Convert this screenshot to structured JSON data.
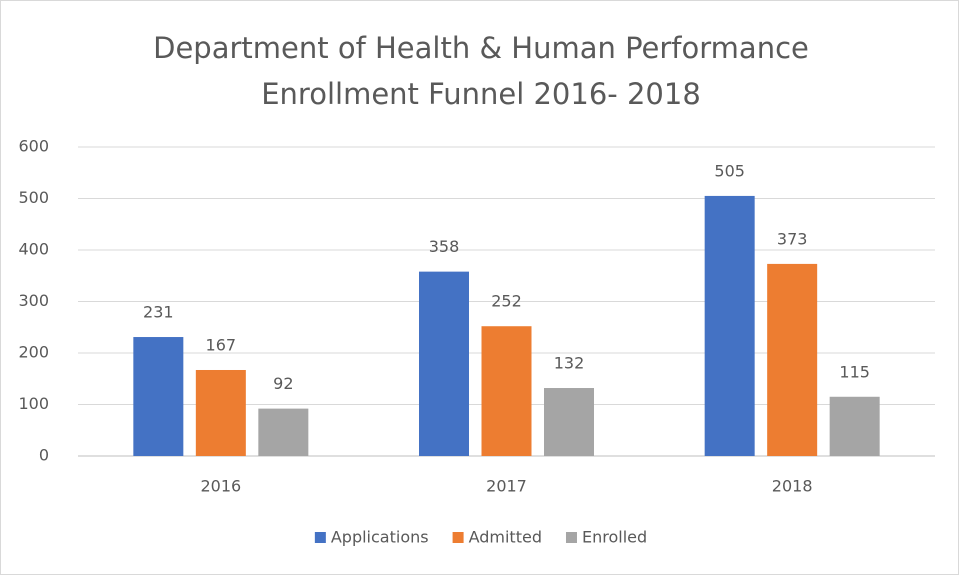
{
  "chart_data": {
    "type": "bar",
    "title": [
      "Department of Health & Human Performance",
      "Enrollment Funnel 2016- 2018"
    ],
    "categories": [
      "2016",
      "2017",
      "2018"
    ],
    "series": [
      {
        "name": "Applications",
        "color": "#4472c4",
        "values": [
          231,
          358,
          505
        ]
      },
      {
        "name": "Admitted",
        "color": "#ed7d31",
        "values": [
          167,
          252,
          373
        ]
      },
      {
        "name": "Enrolled",
        "color": "#a5a5a5",
        "values": [
          92,
          132,
          115
        ]
      }
    ],
    "ylim": [
      0,
      600
    ],
    "yticks": [
      0,
      100,
      200,
      300,
      400,
      500,
      600
    ],
    "grid": true,
    "legend": "bottom"
  }
}
